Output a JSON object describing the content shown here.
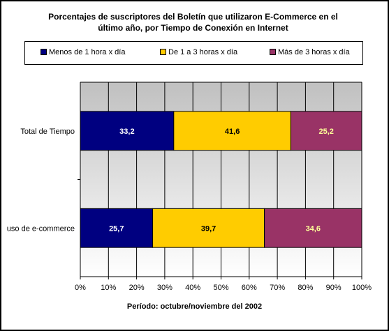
{
  "chart_data": {
    "type": "bar",
    "orientation": "horizontal",
    "stacked": "percent",
    "title_lines": [
      "Porcentajes de suscriptores del Boletín que utilizaron E-Commerce en el",
      "último año, por Tiempo de Conexión en Internet"
    ],
    "xlabel": "Período: octubre/noviembre del 2002",
    "ylabel": "",
    "categories": [
      "Total de Tiempo",
      "uso de e-commerce"
    ],
    "series": [
      {
        "name": "Menos de 1 hora x día",
        "values": [
          33.2,
          25.7
        ],
        "color": "#000080",
        "label_color": "#ffffff"
      },
      {
        "name": "De 1 a 3 horas x día",
        "values": [
          41.6,
          39.7
        ],
        "color": "#ffcc00",
        "label_color": "#000000"
      },
      {
        "name": "Más de 3 horas x día",
        "values": [
          25.2,
          34.6
        ],
        "color": "#993366",
        "label_color": "#ffff99"
      }
    ],
    "data_labels": [
      [
        "33,2",
        "25,7"
      ],
      [
        "41,6",
        "39,7"
      ],
      [
        "25,2",
        "34,6"
      ]
    ],
    "xlim": [
      0,
      100
    ],
    "xticks": [
      "0%",
      "10%",
      "20%",
      "30%",
      "40%",
      "50%",
      "60%",
      "70%",
      "80%",
      "90%",
      "100%"
    ],
    "grid": true,
    "legend_position": "top",
    "plot_background": "gradient gray to white"
  }
}
